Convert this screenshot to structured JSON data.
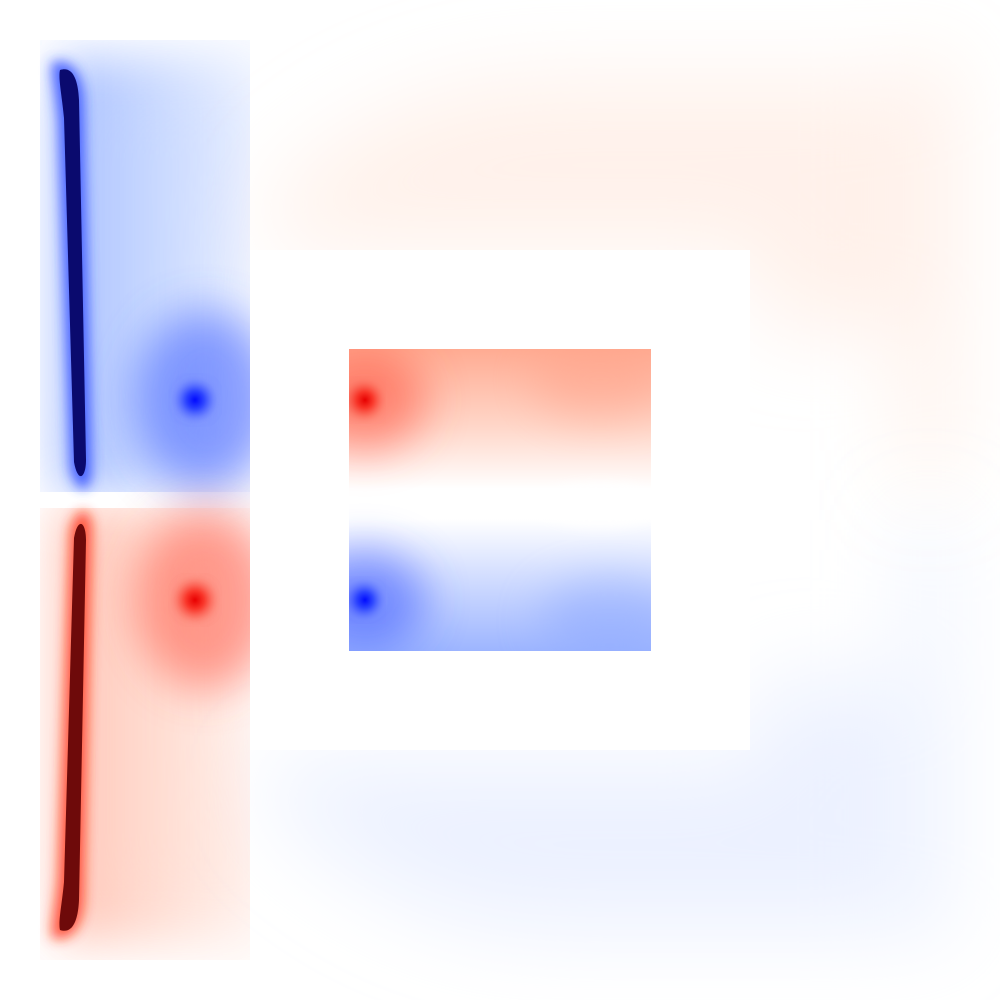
{
  "field_plot": {
    "colors": {
      "positive": "#ff0000",
      "negative": "#0000ff",
      "zero": "#ffffff",
      "extreme": "#000000"
    },
    "obstacles": [
      {
        "name": "outer-square",
        "fill": "#ffffff"
      }
    ],
    "regions": [
      {
        "name": "upper-left-field",
        "sign": "negative"
      },
      {
        "name": "lower-left-field",
        "sign": "positive"
      },
      {
        "name": "inner-upper-field",
        "sign": "positive"
      },
      {
        "name": "inner-lower-field",
        "sign": "negative"
      },
      {
        "name": "upper-right-field",
        "sign": "positive"
      },
      {
        "name": "lower-right-field",
        "sign": "negative"
      }
    ]
  }
}
